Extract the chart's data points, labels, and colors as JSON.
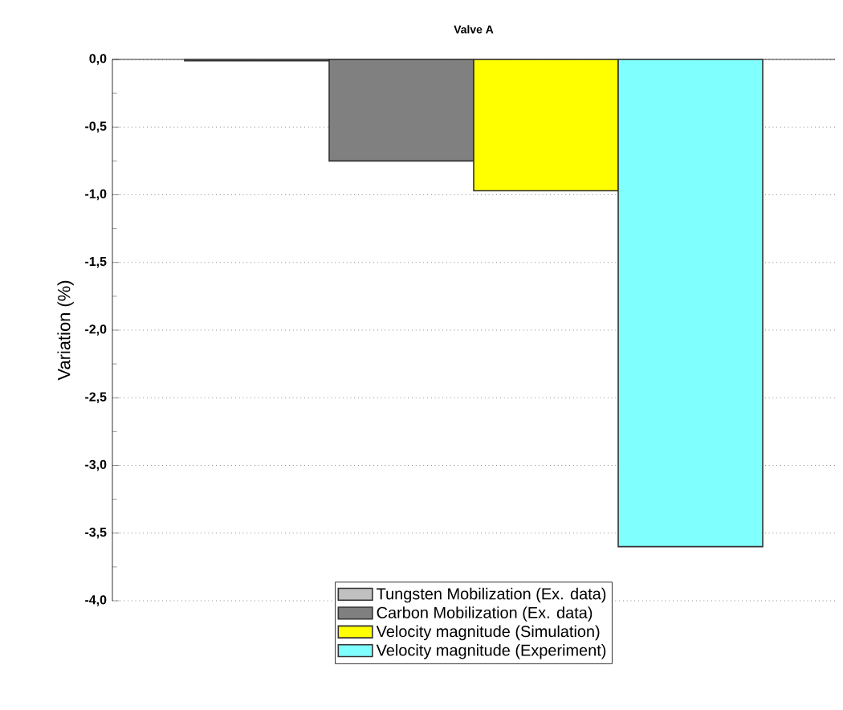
{
  "chart_data": {
    "type": "bar",
    "title": "Valve A",
    "ylabel": "Variation (%)",
    "categories": [
      null
    ],
    "series": [
      {
        "name": "Tungsten Mobilization (Ex. data)",
        "color": "#c0c0c0",
        "values": [
          -0.01
        ]
      },
      {
        "name": "Carbon Mobilization (Ex. data)",
        "color": "#808080",
        "values": [
          -0.75
        ]
      },
      {
        "name": "Velocity magnitude (Simulation)",
        "color": "#ffff00",
        "values": [
          -0.97
        ]
      },
      {
        "name": "Velocity magnitude (Experiment)",
        "color": "#80ffff",
        "values": [
          -3.6
        ]
      }
    ],
    "ylim": [
      -4.0,
      0.0
    ],
    "yticks": [
      {
        "value": 0.0,
        "label": "0,0"
      },
      {
        "value": -0.5,
        "label": "-0,5"
      },
      {
        "value": -1.0,
        "label": "-1,0"
      },
      {
        "value": -1.5,
        "label": "-1,5"
      },
      {
        "value": -2.0,
        "label": "-2,0"
      },
      {
        "value": -2.5,
        "label": "-2,5"
      },
      {
        "value": -3.0,
        "label": "-3,0"
      },
      {
        "value": -3.5,
        "label": "-3,5"
      },
      {
        "value": -4.0,
        "label": "-4,0"
      }
    ],
    "grid": "y",
    "legend": "bottom",
    "tick_labels": "y"
  }
}
